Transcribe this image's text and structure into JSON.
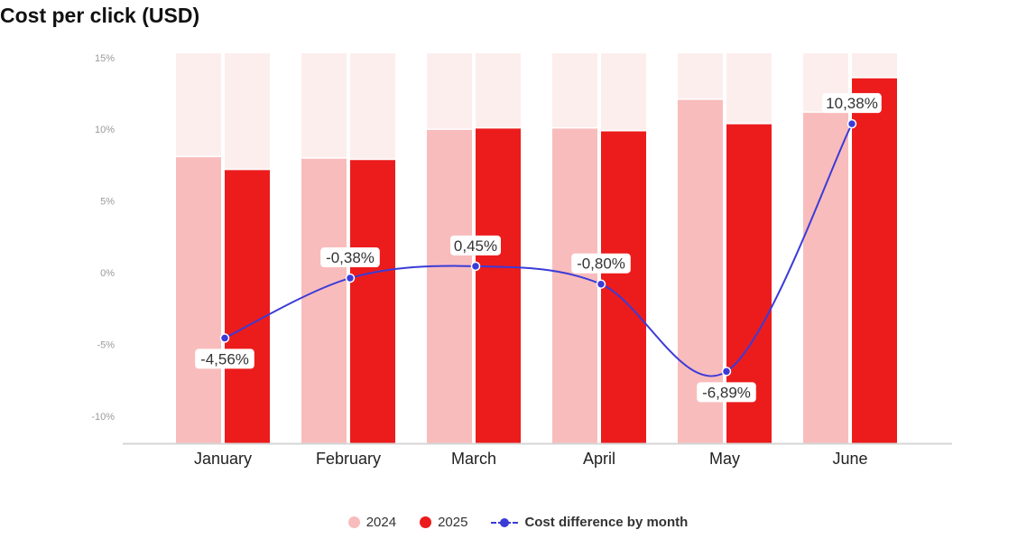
{
  "chart_data": {
    "type": "bar",
    "title": "Cost per click (USD)",
    "categories": [
      "January",
      "February",
      "March",
      "April",
      "May",
      "June"
    ],
    "y_ticks": [
      "15%",
      "10%",
      "5%",
      "0%",
      "-5%",
      "-10%"
    ],
    "ylim": [
      -11.9,
      15.3
    ],
    "series": [
      {
        "name": "2024",
        "kind": "bar",
        "color": "#f9bcbc",
        "values": [
          8.1,
          8.0,
          10.0,
          10.1,
          12.1,
          11.2
        ]
      },
      {
        "name": "2025",
        "kind": "bar",
        "color": "#ec1c1c",
        "values": [
          7.2,
          7.9,
          10.1,
          9.9,
          10.4,
          13.6
        ]
      },
      {
        "name": "Cost difference by month",
        "kind": "line",
        "color": "#3b3bd8",
        "values": [
          -4.56,
          -0.38,
          0.45,
          -0.8,
          -6.89,
          10.38
        ],
        "labels": [
          "-4,56%",
          "-0,38%",
          "0,45%",
          "-0,80%",
          "-6,89%",
          "10,38%"
        ]
      }
    ],
    "bar_background_color": "#fdeeee",
    "grid": false,
    "legend_position": "bottom"
  }
}
